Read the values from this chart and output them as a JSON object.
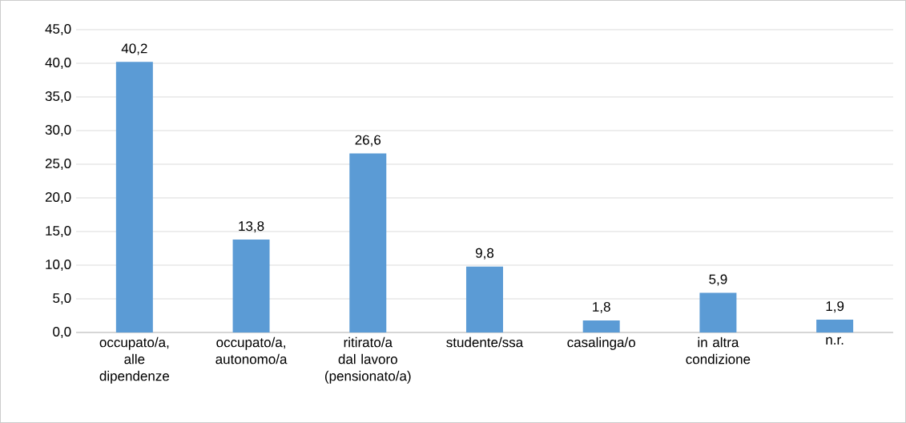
{
  "chart_data": {
    "type": "bar",
    "categories": [
      "occupato/a, alle dipendenze",
      "occupato/a, autonomo/a",
      "ritirato/a dal lavoro (pensionato/a)",
      "studente/ssa",
      "casalinga/o",
      "in altra condizione",
      "n.r."
    ],
    "values": [
      40.2,
      13.8,
      26.6,
      9.8,
      1.8,
      5.9,
      1.9
    ],
    "value_labels": [
      "40,2",
      "13,8",
      "26,6",
      "9,8",
      "1,8",
      "5,9",
      "1,9"
    ],
    "color": "#5b9bd5",
    "ylim": [
      0,
      45
    ],
    "yticks": [
      {
        "value": 0,
        "label": "0,0"
      },
      {
        "value": 5,
        "label": "5,0"
      },
      {
        "value": 10,
        "label": "10,0"
      },
      {
        "value": 15,
        "label": "15,0"
      },
      {
        "value": 20,
        "label": "20,0"
      },
      {
        "value": 25,
        "label": "25,0"
      },
      {
        "value": 30,
        "label": "30,0"
      },
      {
        "value": 35,
        "label": "35,0"
      },
      {
        "value": 40,
        "label": "40,0"
      },
      {
        "value": 45,
        "label": "45,0"
      }
    ],
    "grid": "y"
  }
}
